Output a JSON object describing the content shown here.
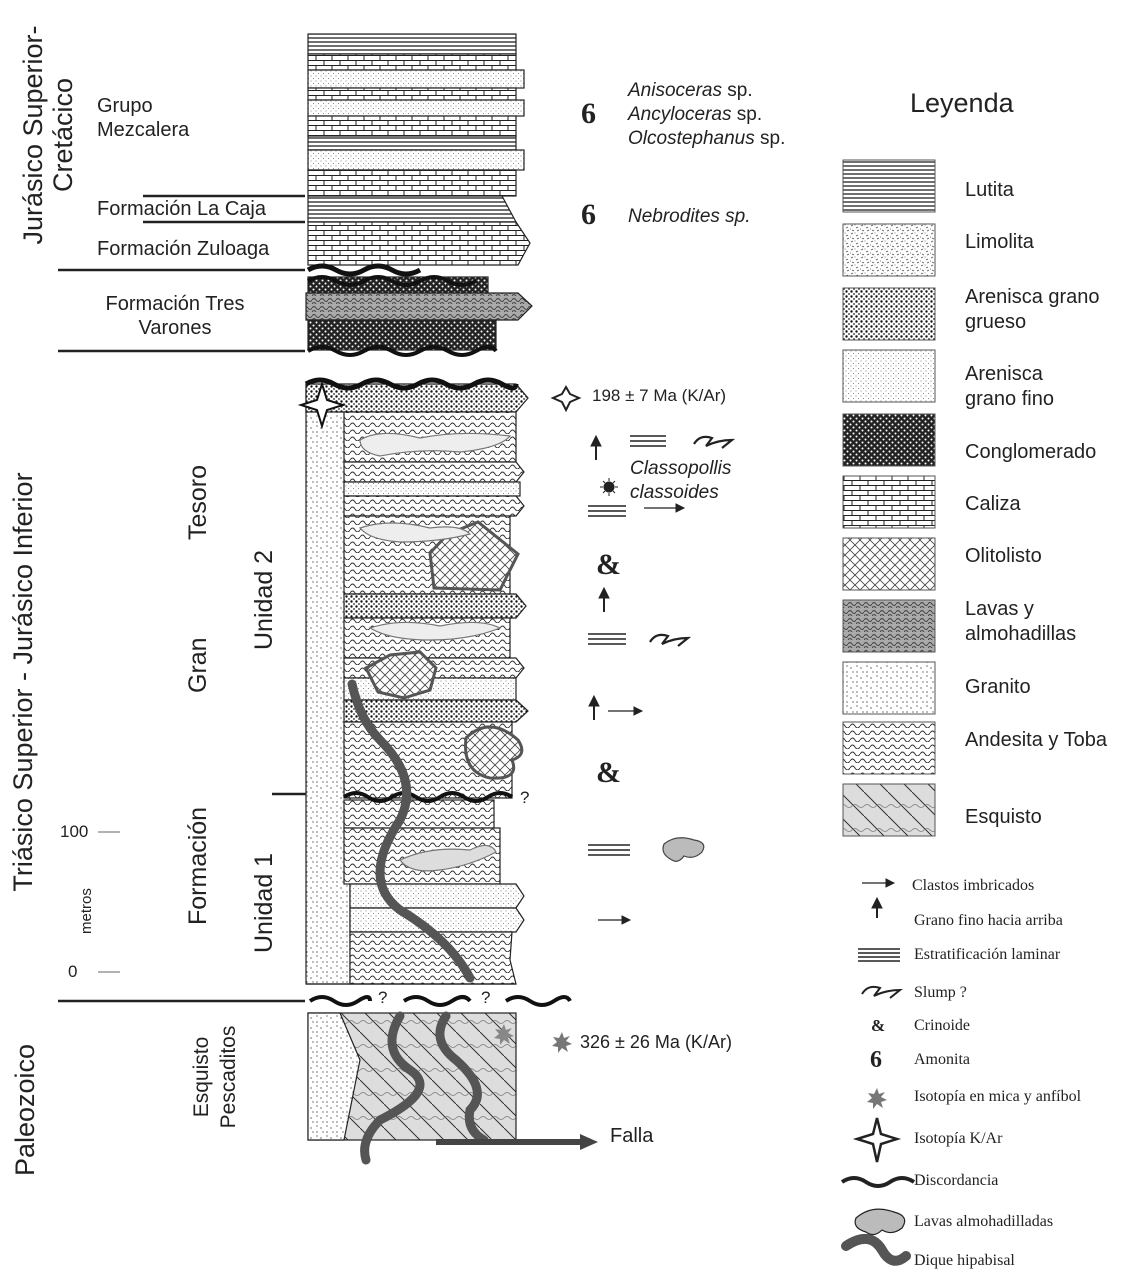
{
  "eras": {
    "jur_cret": [
      "Jurásico Superior-",
      "Cretácico"
    ],
    "tri_jur": "Triásico Superior  - Jurásico Inferior",
    "paleo": "Paleozoico"
  },
  "formations": {
    "mezcalera": [
      "Grupo",
      "Mezcalera"
    ],
    "la_caja": "Formación La Caja",
    "zuloaga": "Formación Zuloaga",
    "tres_varones": [
      "Formación Tres",
      "Varones"
    ],
    "gran_tesoro": [
      "Formación",
      "Gran",
      "Tesoro"
    ],
    "unidad1": "Unidad  1",
    "unidad2": "Unidad  2",
    "esquisto": [
      "Esquisto",
      "Pescaditos"
    ]
  },
  "scale": {
    "label": "metros",
    "top": "100",
    "bottom": "0"
  },
  "fossils": {
    "amonita_num": "6",
    "ammonites": [
      {
        "genus": "Anisoceras",
        "suffix": " sp."
      },
      {
        "genus": "Ancyloceras",
        "suffix": " sp."
      },
      {
        "genus": "Olcostephanus",
        "suffix": " sp."
      }
    ],
    "nebrodites": "Nebrodites sp.",
    "classopollis": [
      "Classopollis",
      "classoides"
    ],
    "crinoid": "&"
  },
  "ages": {
    "kar_upper": "198 ± 7 Ma (K/Ar)",
    "kar_lower": "326  ±  26 Ma (K/Ar)"
  },
  "question_mark": "?",
  "falla": "Falla",
  "legend": {
    "title": "Leyenda",
    "lithologies": [
      {
        "label": "Lutita",
        "pattern": "lutita"
      },
      {
        "label": "Limolita",
        "pattern": "limolita"
      },
      {
        "label": "Arenisca grano grueso",
        "pattern": "gruesa"
      },
      {
        "label": "Arenisca grano fino",
        "pattern": "fina"
      },
      {
        "label": "Conglomerado",
        "pattern": "conglomerado"
      },
      {
        "label": "Caliza",
        "pattern": "caliza"
      },
      {
        "label": "Olitolisto",
        "pattern": "olitolisto"
      },
      {
        "label": "Lavas y almohadillas",
        "pattern": "lavas"
      },
      {
        "label": "Granito",
        "pattern": "granito"
      },
      {
        "label": "Andesita y Toba",
        "pattern": "andesita"
      },
      {
        "label": "Esquisto",
        "pattern": "esquisto"
      }
    ],
    "symbols": [
      {
        "label": "Clastos imbricados",
        "icon": "arrow-icon"
      },
      {
        "label": "Grano fino hacia arriba",
        "icon": "up-arrow-icon"
      },
      {
        "label": "Estratificación laminar",
        "icon": "lamination-icon"
      },
      {
        "label": "Slump  ?",
        "icon": "slump-icon"
      },
      {
        "label": "Crinoide",
        "icon": "crinoid-icon"
      },
      {
        "label": "Amonita",
        "icon": "ammonite-icon"
      },
      {
        "label": "Isotopía en mica y anfíbol",
        "icon": "starburst-icon"
      },
      {
        "label": "Isotopía K/Ar",
        "icon": "star-icon"
      },
      {
        "label": "Discordancia",
        "icon": "wavy-line-icon"
      },
      {
        "label": "Lavas almohadilladas",
        "icon": "pillow-lava-icon"
      },
      {
        "label": "Dique hipabisal",
        "icon": "dike-icon"
      }
    ]
  }
}
